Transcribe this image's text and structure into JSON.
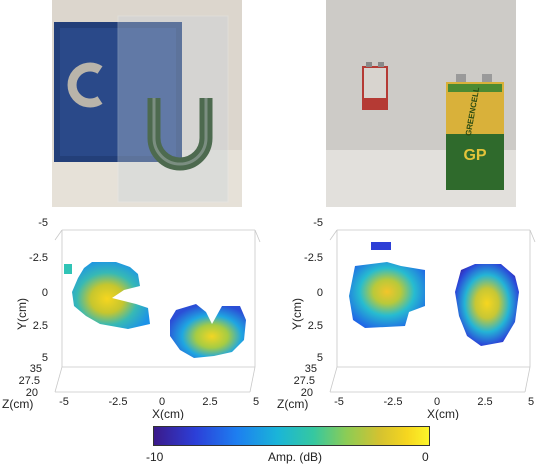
{
  "left_plot": {
    "ylabel": "Y(cm)",
    "xlabel": "X(cm)",
    "zlabel": "Z(cm)",
    "yticks": [
      "-5",
      "-2.5",
      "0",
      "2.5",
      "5"
    ],
    "xticks": [
      "-5",
      "-2.5",
      "0",
      "2.5",
      "5"
    ],
    "zticks": [
      "35",
      "27.5",
      "20"
    ]
  },
  "right_plot": {
    "ylabel": "Y(cm)",
    "xlabel": "X(cm)",
    "zlabel": "Z(cm)",
    "yticks": [
      "-5",
      "-2.5",
      "0",
      "2.5",
      "5"
    ],
    "xticks": [
      "-5",
      "-2.5",
      "0",
      "2.5",
      "5"
    ],
    "zticks": [
      "35",
      "27.5",
      "20"
    ]
  },
  "colorbar": {
    "min_label": "-10",
    "title": "Amp. (dB)",
    "max_label": "0"
  },
  "battery_label": {
    "brand": "GP",
    "name": "GREENCELL"
  }
}
